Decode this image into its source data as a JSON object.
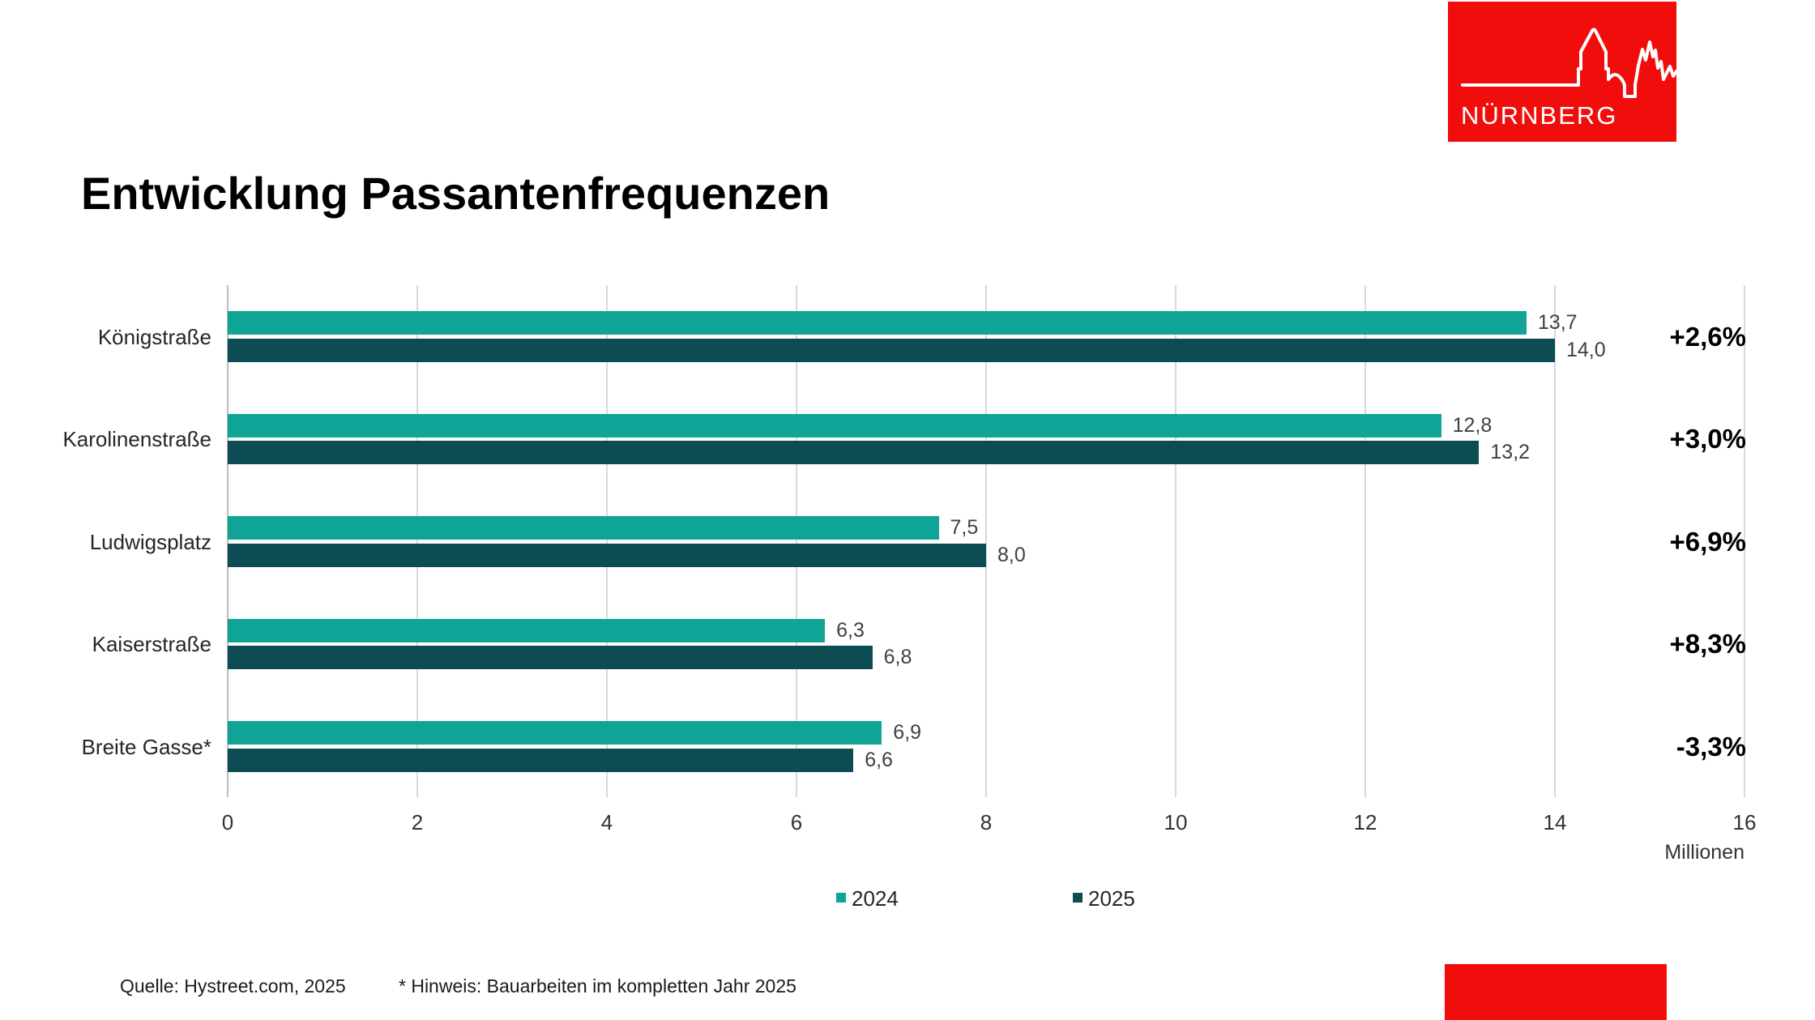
{
  "logo": {
    "city_name": "NÜRNBERG"
  },
  "title": "Entwicklung Passantenfrequenzen",
  "chart_data": {
    "type": "bar",
    "orientation": "horizontal",
    "title": "Entwicklung Passantenfrequenzen",
    "categories": [
      "Königstraße",
      "Karolinenstraße",
      "Ludwigsplatz",
      "Kaiserstraße",
      "Breite Gasse*"
    ],
    "series": [
      {
        "name": "2024",
        "color": "#10a496",
        "values": [
          13.7,
          12.8,
          7.5,
          6.3,
          6.9
        ],
        "labels": [
          "13,7",
          "12,8",
          "7,5",
          "6,3",
          "6,9"
        ]
      },
      {
        "name": "2025",
        "color": "#0c4c52",
        "values": [
          14.0,
          13.2,
          8.0,
          6.8,
          6.6
        ],
        "labels": [
          "14,0",
          "13,2",
          "8,0",
          "6,8",
          "6,6"
        ]
      }
    ],
    "change_labels": [
      "+2,6%",
      "+3,0%",
      "+6,9%",
      "+8,3%",
      "-3,3%"
    ],
    "xlim": [
      0,
      16
    ],
    "xticks": [
      0,
      2,
      4,
      6,
      8,
      10,
      12,
      14,
      16
    ],
    "x_unit_label": "Millionen",
    "grid": "vertical-gridlines",
    "legend_position": "bottom"
  },
  "footer": {
    "source": "Quelle: Hystreet.com, 2025",
    "note": "* Hinweis: Bauarbeiten im kompletten Jahr 2025"
  },
  "colors": {
    "brand_red": "#f20d0d",
    "series_2024": "#10a496",
    "series_2025": "#0c4c52",
    "gridline": "#d9d9d9",
    "value_label": "#404040"
  }
}
